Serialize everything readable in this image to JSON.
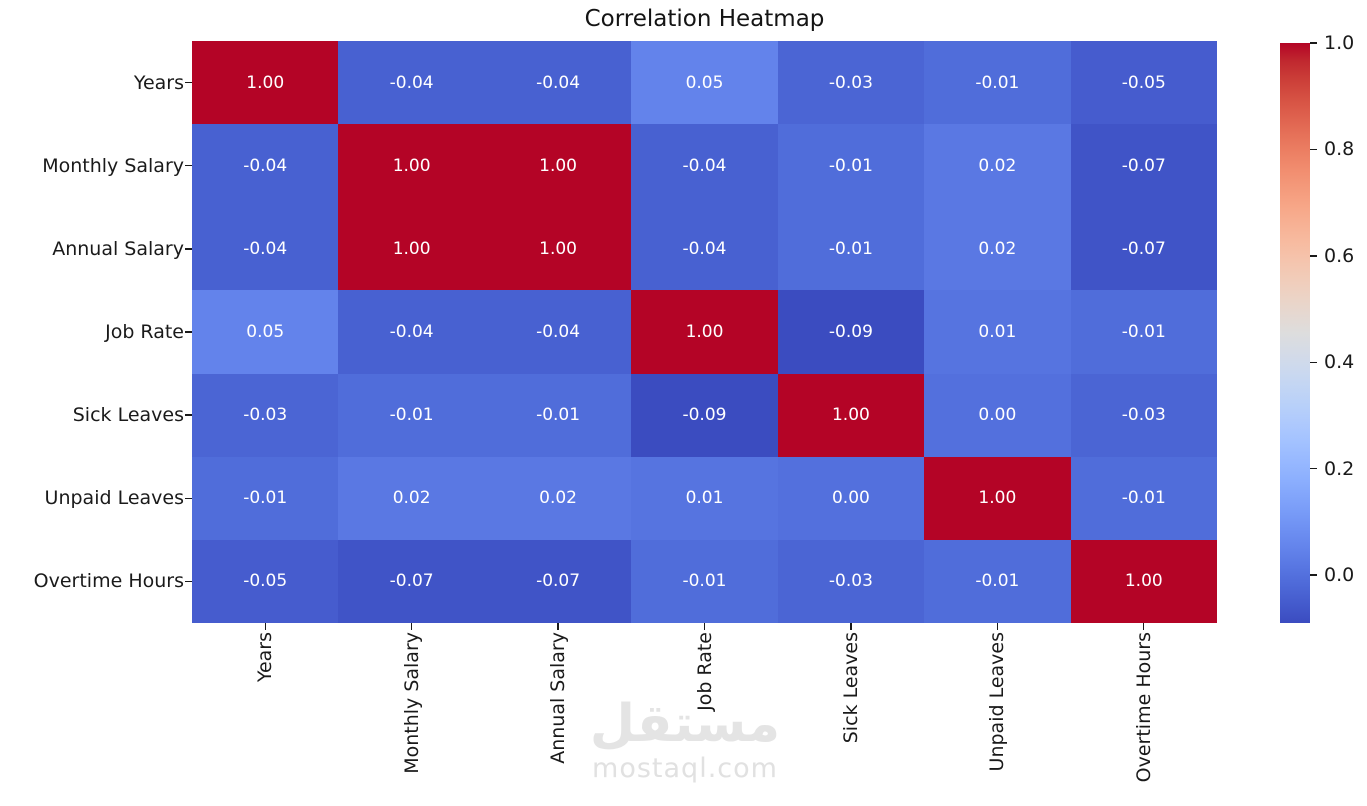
{
  "title": "Correlation Heatmap",
  "watermark": {
    "logo": "مستقل",
    "domain": "mostaql.com"
  },
  "chart_data": {
    "type": "heatmap",
    "title": "Correlation Heatmap",
    "categories": [
      "Years",
      "Monthly Salary",
      "Annual Salary",
      "Job Rate",
      "Sick Leaves",
      "Unpaid Leaves",
      "Overtime Hours"
    ],
    "matrix": [
      [
        1.0,
        -0.04,
        -0.04,
        0.05,
        -0.03,
        -0.01,
        -0.05
      ],
      [
        -0.04,
        1.0,
        1.0,
        -0.04,
        -0.01,
        0.02,
        -0.07
      ],
      [
        -0.04,
        1.0,
        1.0,
        -0.04,
        -0.01,
        0.02,
        -0.07
      ],
      [
        0.05,
        -0.04,
        -0.04,
        1.0,
        -0.09,
        0.01,
        -0.01
      ],
      [
        -0.03,
        -0.01,
        -0.01,
        -0.09,
        1.0,
        0.0,
        -0.03
      ],
      [
        -0.01,
        0.02,
        0.02,
        0.01,
        0.0,
        1.0,
        -0.01
      ],
      [
        -0.05,
        -0.07,
        -0.07,
        -0.01,
        -0.03,
        -0.01,
        1.0
      ]
    ],
    "value_decimals": 2,
    "cell_text_color": "#ffffff",
    "label_color": "#1a1a1a",
    "colorbar_ticks": [
      1.0,
      0.8,
      0.6,
      0.4,
      0.2,
      0.0
    ],
    "colorbar_tick_decimals": 1,
    "colormap": {
      "name": "coolwarm",
      "vmin": -0.09,
      "vmax": 1.0,
      "anchors": [
        "#3b4cc0",
        "#445acc",
        "#4d68d7",
        "#5775e1",
        "#6282ea",
        "#6c8ef1",
        "#779af7",
        "#82a5fb",
        "#8db0fe",
        "#98b9ff",
        "#a3c2ff",
        "#aec9fd",
        "#b8d0f9",
        "#c2d5f4",
        "#ccd9ee",
        "#d5dbe6",
        "#dddddd",
        "#e5d8d1",
        "#ecd3c5",
        "#f1ccb9",
        "#f5c4ad",
        "#f7bba0",
        "#f7b194",
        "#f7a687",
        "#f49a7b",
        "#f18d6f",
        "#ec7f63",
        "#e57058",
        "#de604d",
        "#d55042",
        "#cb3e38",
        "#c0282f",
        "#b40426"
      ]
    },
    "legend_position": "right",
    "grid": false
  }
}
